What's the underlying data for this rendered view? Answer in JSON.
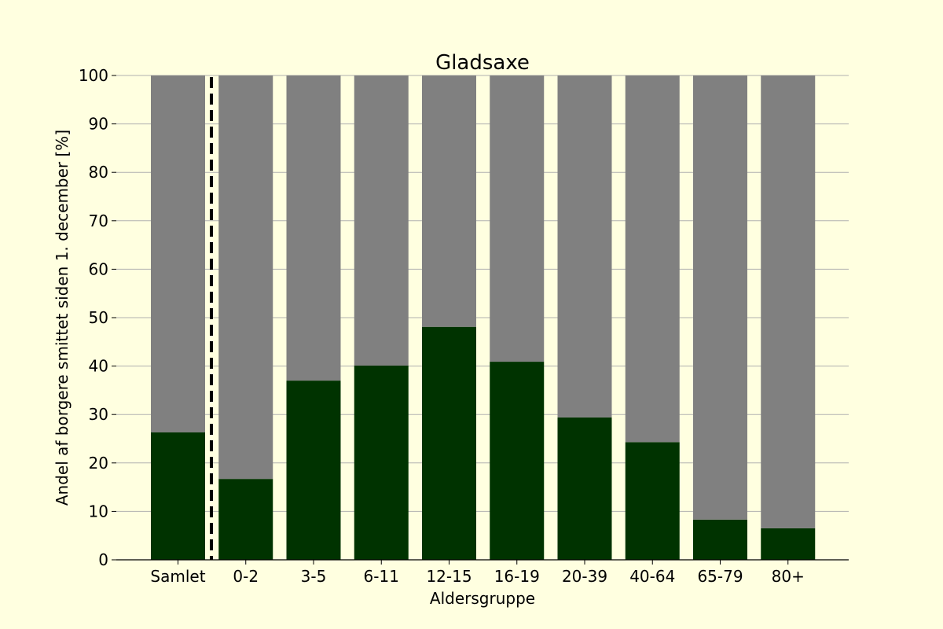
{
  "chart_data": {
    "type": "bar",
    "stacked": true,
    "title": "Gladsaxe",
    "xlabel": "Aldersgruppe",
    "ylabel": "Andel af borgere smittet siden 1. december [%]",
    "ylim": [
      0,
      100
    ],
    "yticks": [
      0,
      10,
      20,
      30,
      40,
      50,
      60,
      70,
      80,
      90,
      100
    ],
    "grid": "horizontal",
    "categories": [
      "Samlet",
      "0-2",
      "3-5",
      "6-11",
      "12-15",
      "16-19",
      "20-39",
      "40-64",
      "65-79",
      "80+"
    ],
    "series": [
      {
        "values": [
          26.3,
          16.7,
          37.0,
          40.1,
          48.1,
          40.9,
          29.4,
          24.3,
          8.3,
          6.5
        ],
        "color": "#003300"
      },
      {
        "values": [
          73.7,
          83.3,
          63.0,
          59.9,
          51.9,
          59.1,
          70.6,
          75.7,
          91.7,
          93.5
        ],
        "color": "#808080"
      }
    ],
    "separator_after_category": "Samlet",
    "separator_style": "dashed",
    "background_color": "#ffffe0",
    "grid_color": "#b0b0b0"
  }
}
